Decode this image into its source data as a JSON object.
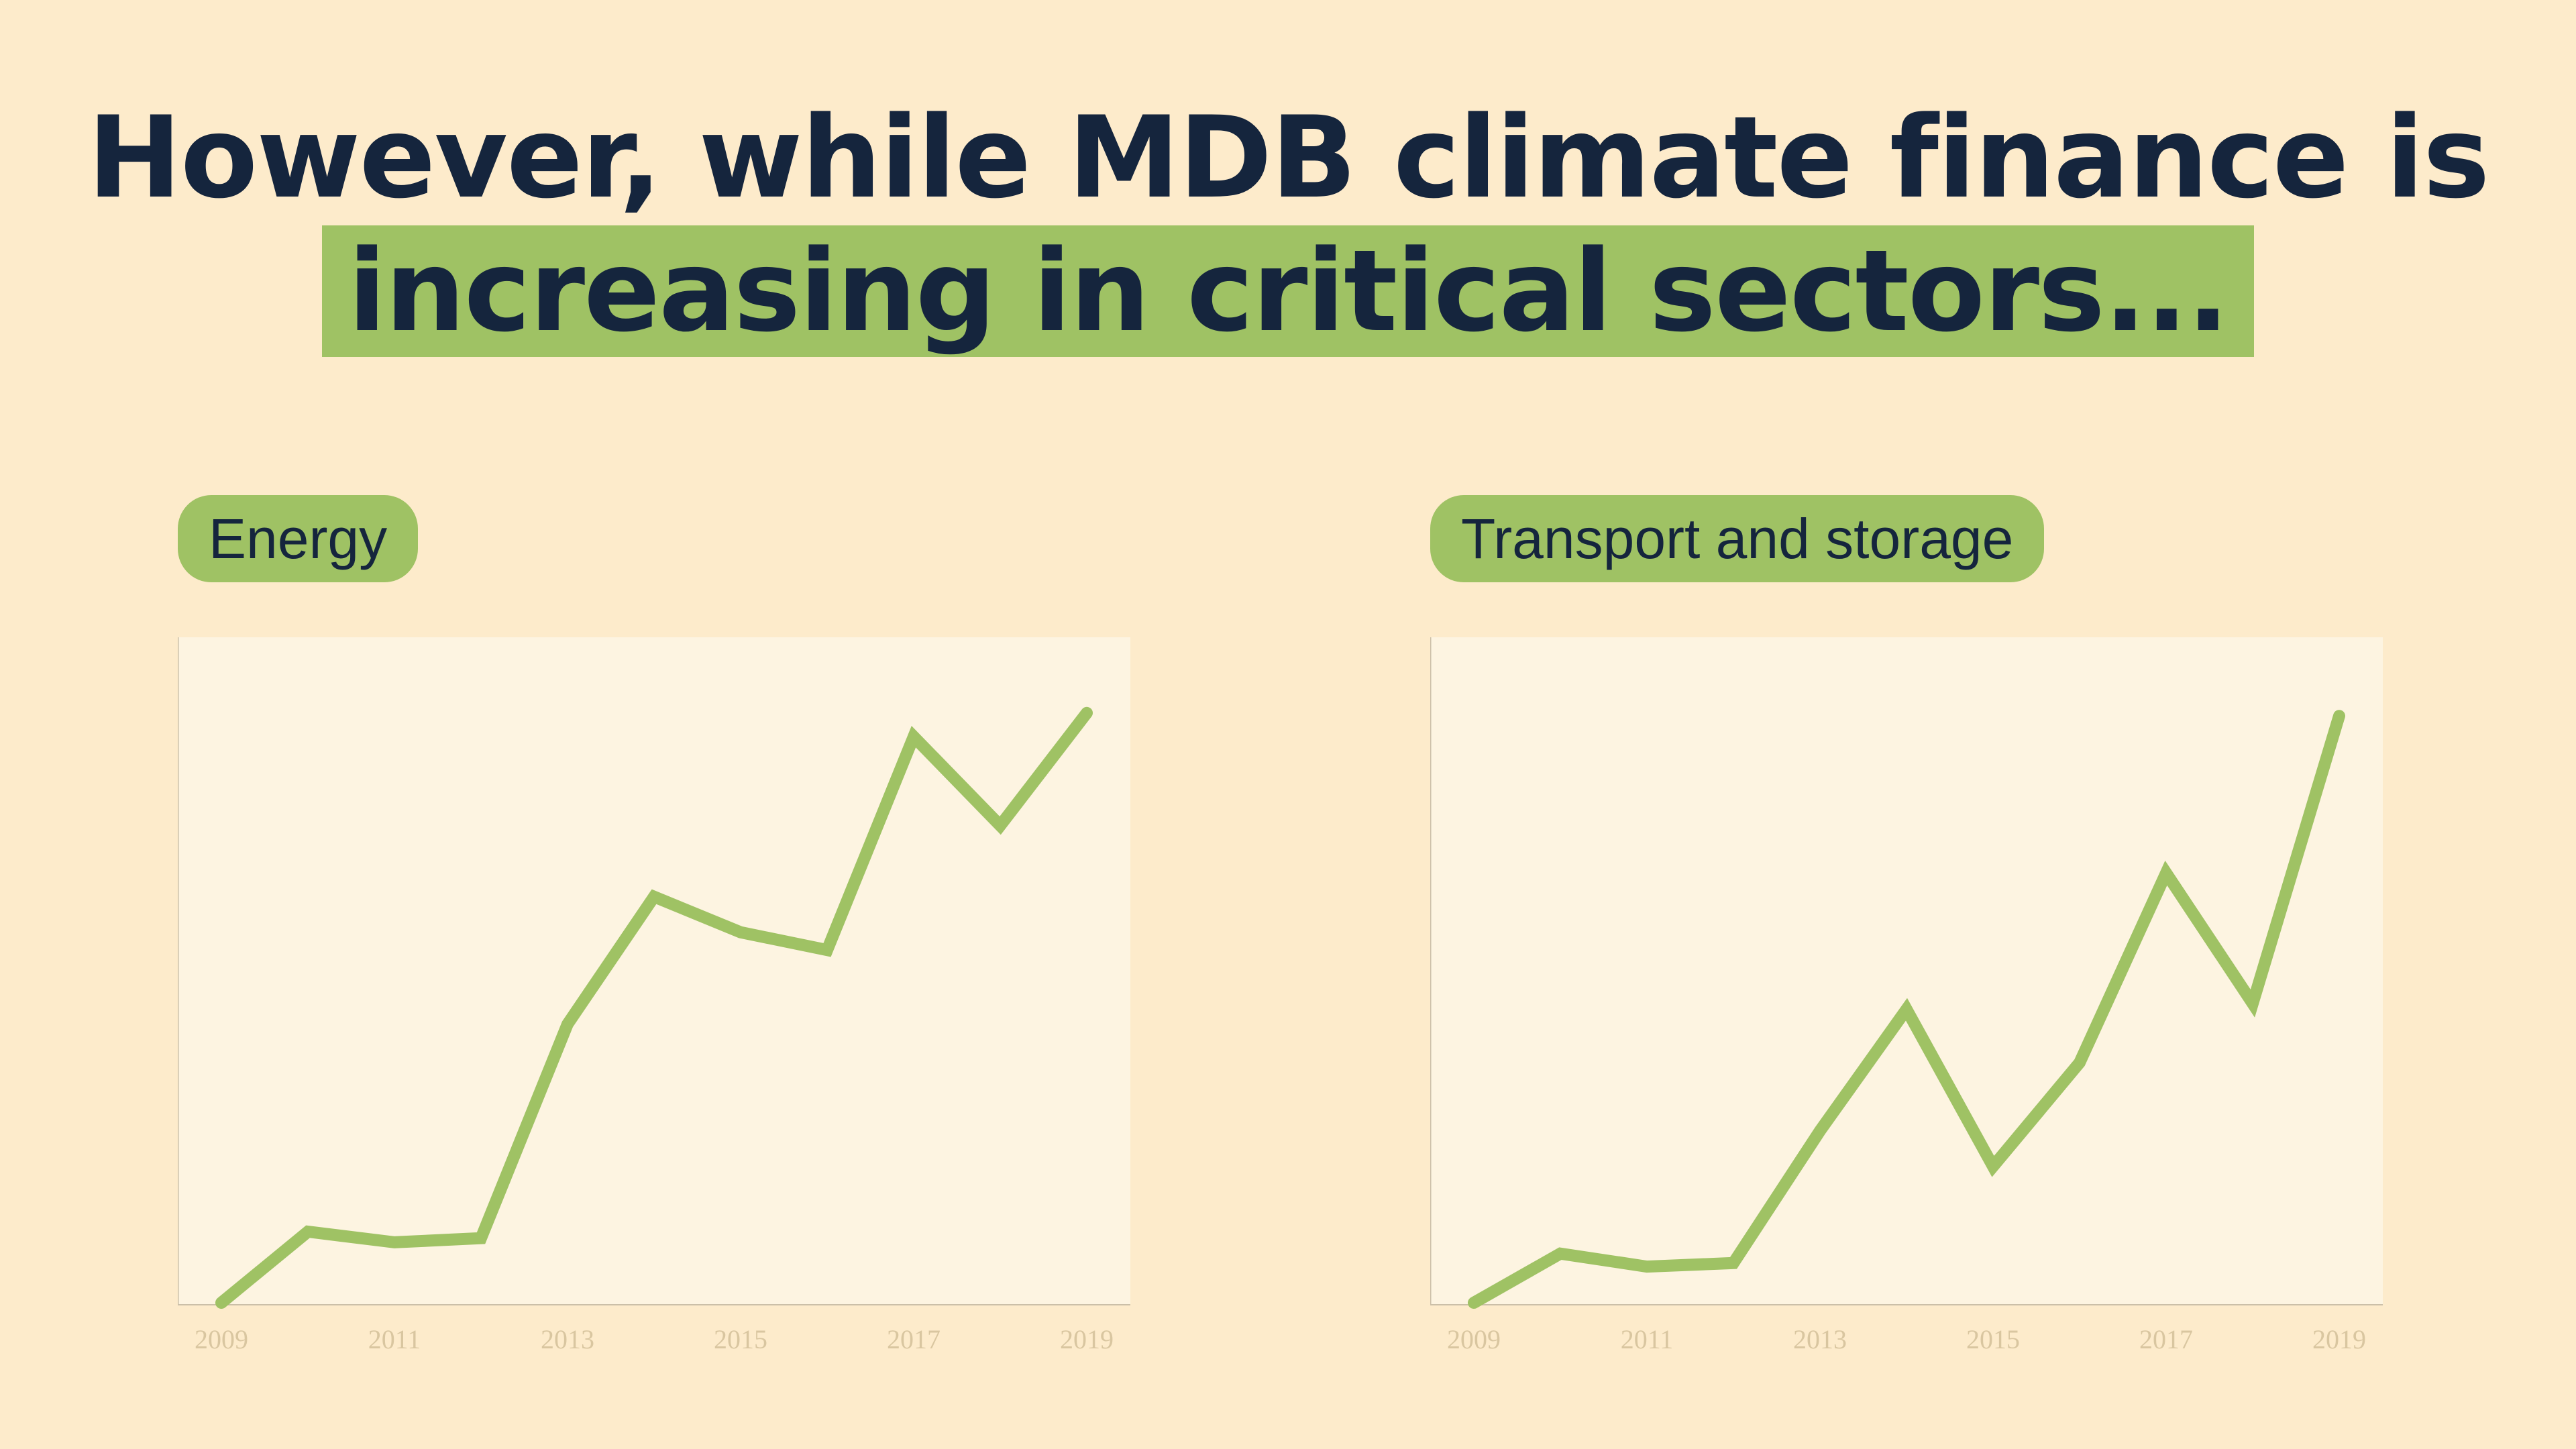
{
  "title": {
    "line1": "However, while MDB climate finance is",
    "line2": "increasing in critical sectors..."
  },
  "colors": {
    "background": "#fdebcb",
    "plot_background": "#fdf4e1",
    "accent": "#9fc264",
    "text": "#15253d",
    "tick": "#d9c6a0",
    "axis": "#cbbfa8"
  },
  "chart_data": [
    {
      "type": "line",
      "title": "Energy",
      "x": [
        2009,
        2010,
        2011,
        2012,
        2013,
        2014,
        2015,
        2016,
        2017,
        2018,
        2019
      ],
      "values": [
        0,
        12,
        10.2,
        10.9,
        47,
        68.5,
        62.5,
        59.5,
        95.5,
        80.5,
        99.5
      ],
      "tick_labels": [
        "2009",
        "2011",
        "2013",
        "2015",
        "2017",
        "2019"
      ],
      "xlabel": "",
      "ylabel": "",
      "ylim": [
        0,
        110
      ],
      "grid": false
    },
    {
      "type": "line",
      "title": "Transport and storage",
      "x": [
        2009,
        2010,
        2011,
        2012,
        2013,
        2014,
        2015,
        2016,
        2017,
        2018,
        2019
      ],
      "values": [
        0,
        8.3,
        6.1,
        6.7,
        29,
        49.5,
        23,
        40.5,
        72.5,
        50.5,
        99
      ],
      "tick_labels": [
        "2009",
        "2011",
        "2013",
        "2015",
        "2017",
        "2019"
      ],
      "xlabel": "",
      "ylabel": "",
      "ylim": [
        0,
        110
      ],
      "grid": false
    }
  ]
}
